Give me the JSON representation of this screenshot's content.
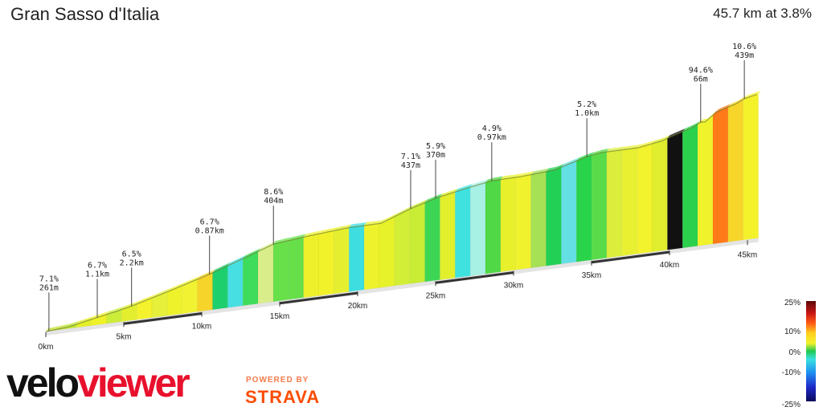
{
  "header": {
    "title": "Gran Sasso d'Italia",
    "summary": "45.7 km at 3.8%"
  },
  "branding": {
    "logo_part1": "velo",
    "logo_part2": "viewer",
    "powered_by": "POWERED BY",
    "strava": "STRAVA"
  },
  "chart_data": {
    "type": "area",
    "title": "Gran Sasso d'Italia",
    "subtitle": "45.7 km at 3.8%",
    "xlim": [
      0,
      45.7
    ],
    "x_ticks": [
      {
        "km": 0,
        "label": "0km"
      },
      {
        "km": 5,
        "label": "5km"
      },
      {
        "km": 10,
        "label": "10km"
      },
      {
        "km": 15,
        "label": "15km"
      },
      {
        "km": 20,
        "label": "20km"
      },
      {
        "km": 25,
        "label": "25km"
      },
      {
        "km": 30,
        "label": "30km"
      },
      {
        "km": 35,
        "label": "35km"
      },
      {
        "km": 40,
        "label": "40km"
      },
      {
        "km": 45,
        "label": "45km"
      }
    ],
    "profile": [
      [
        0,
        0
      ],
      [
        0.2,
        0.2
      ],
      [
        1.5,
        2.5
      ],
      [
        3.3,
        9.8
      ],
      [
        4.5,
        14.5
      ],
      [
        5.5,
        19
      ],
      [
        8,
        33
      ],
      [
        10.5,
        48
      ],
      [
        12.5,
        62
      ],
      [
        14.6,
        77
      ],
      [
        15.0,
        78
      ],
      [
        17.0,
        82
      ],
      [
        19.5,
        86
      ],
      [
        21.5,
        86
      ],
      [
        23.4,
        100.5
      ],
      [
        25.0,
        110
      ],
      [
        27.0,
        118
      ],
      [
        28.6,
        123.5
      ],
      [
        30.5,
        124
      ],
      [
        32.6,
        127
      ],
      [
        34.7,
        139
      ],
      [
        35.6,
        142
      ],
      [
        38.0,
        142
      ],
      [
        39.5,
        147
      ],
      [
        41.5,
        160
      ],
      [
        42.0,
        165
      ],
      [
        42.3,
        165
      ],
      [
        43.0,
        176
      ],
      [
        43.5,
        179
      ],
      [
        44.3,
        184
      ],
      [
        44.8,
        189
      ],
      [
        45.7,
        193
      ]
    ],
    "annotations": [
      {
        "km": 0.2,
        "gradient": "7.1%",
        "length": "261m"
      },
      {
        "km": 3.3,
        "gradient": "6.7%",
        "length": "1.1km"
      },
      {
        "km": 5.5,
        "gradient": "6.5%",
        "length": "2.2km"
      },
      {
        "km": 10.5,
        "gradient": "6.7%",
        "length": "0.87km"
      },
      {
        "km": 14.6,
        "gradient": "8.6%",
        "length": "404m"
      },
      {
        "km": 23.4,
        "gradient": "7.1%",
        "length": "437m"
      },
      {
        "km": 25.0,
        "gradient": "5.9%",
        "length": "370m"
      },
      {
        "km": 28.6,
        "gradient": "4.9%",
        "length": "0.97km"
      },
      {
        "km": 34.7,
        "gradient": "5.2%",
        "length": "1.0km"
      },
      {
        "km": 42.0,
        "gradient": "94.6%",
        "length": "66m"
      },
      {
        "km": 44.8,
        "gradient": "10.6%",
        "length": "439m"
      }
    ],
    "segment_colors": [
      "#c2e02e",
      "#bde436",
      "#e3ef28",
      "#f0f229",
      "#ccec3a",
      "#e3ef2e",
      "#f3f22c",
      "#e6f03a",
      "#eef22b",
      "#f0f232",
      "#f7d42a",
      "#1ecf6e",
      "#48dfe2",
      "#3fdb5a",
      "#d9ee8a",
      "#68e04a",
      "#66df48",
      "#eef02c",
      "#f2f22a",
      "#e6ef2f",
      "#3ddde0",
      "#eef22c",
      "#e7f22a",
      "#d3ee37",
      "#c9ec34",
      "#3dd654",
      "#e2ef2d",
      "#40e2e0",
      "#a6f0e4",
      "#50d846",
      "#e8f02b",
      "#f0f22d",
      "#a6e055",
      "#22d055",
      "#64e0e4",
      "#2ad44a",
      "#59db4a",
      "#dcee3b",
      "#e8f031",
      "#f2f22d",
      "#e0ee2f",
      "#111111",
      "#2bd14d",
      "#f0f22b",
      "#ff7a18",
      "#f7d52a",
      "#f4f22b"
    ],
    "legend": {
      "labels": [
        "25%",
        "10%",
        "0%",
        "-10%",
        "-25%"
      ]
    }
  }
}
